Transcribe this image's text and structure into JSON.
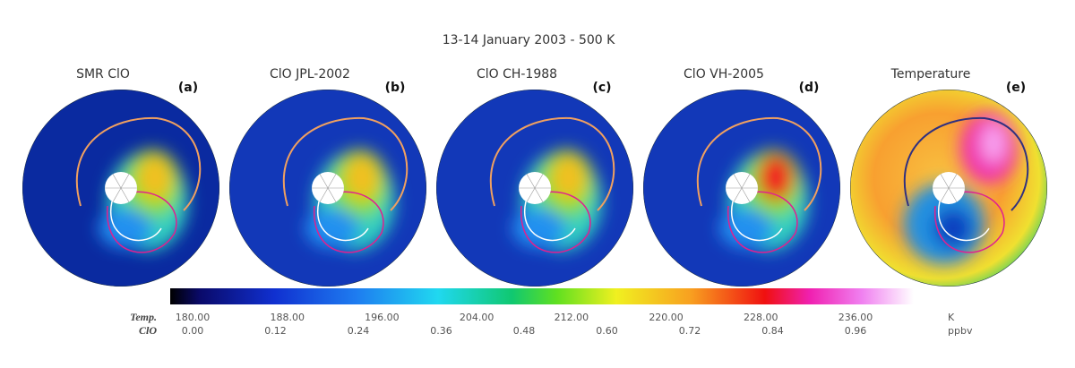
{
  "title": "13-14 January 2003 - 500 K",
  "panels": [
    {
      "title": "SMR ClO",
      "label": "(a)"
    },
    {
      "title": "ClO JPL-2002",
      "label": "(b)"
    },
    {
      "title": "ClO CH-1988",
      "label": "(c)"
    },
    {
      "title": "ClO VH-2005",
      "label": "(d)"
    },
    {
      "title": "Temperature",
      "label": "(e)"
    }
  ],
  "colorbar": {
    "rows": [
      {
        "name": "Temp.",
        "unit": "K",
        "ticks": [
          {
            "value": 180,
            "label": "180.00"
          },
          {
            "value": 188,
            "label": "188.00"
          },
          {
            "value": 196,
            "label": "196.00"
          },
          {
            "value": 204,
            "label": "204.00"
          },
          {
            "value": 212,
            "label": "212.00"
          },
          {
            "value": 220,
            "label": "220.00"
          },
          {
            "value": 228,
            "label": "228.00"
          },
          {
            "value": 236,
            "label": "236.00"
          }
        ]
      },
      {
        "name": "ClO",
        "unit": "ppbv",
        "ticks": [
          {
            "value": 0,
            "label": "0.00"
          },
          0.12,
          0.24,
          0.36,
          0.48,
          {
            "value": 0.6,
            "label": "0.60"
          },
          0.72,
          0.84,
          0.96
        ]
      }
    ]
  }
}
